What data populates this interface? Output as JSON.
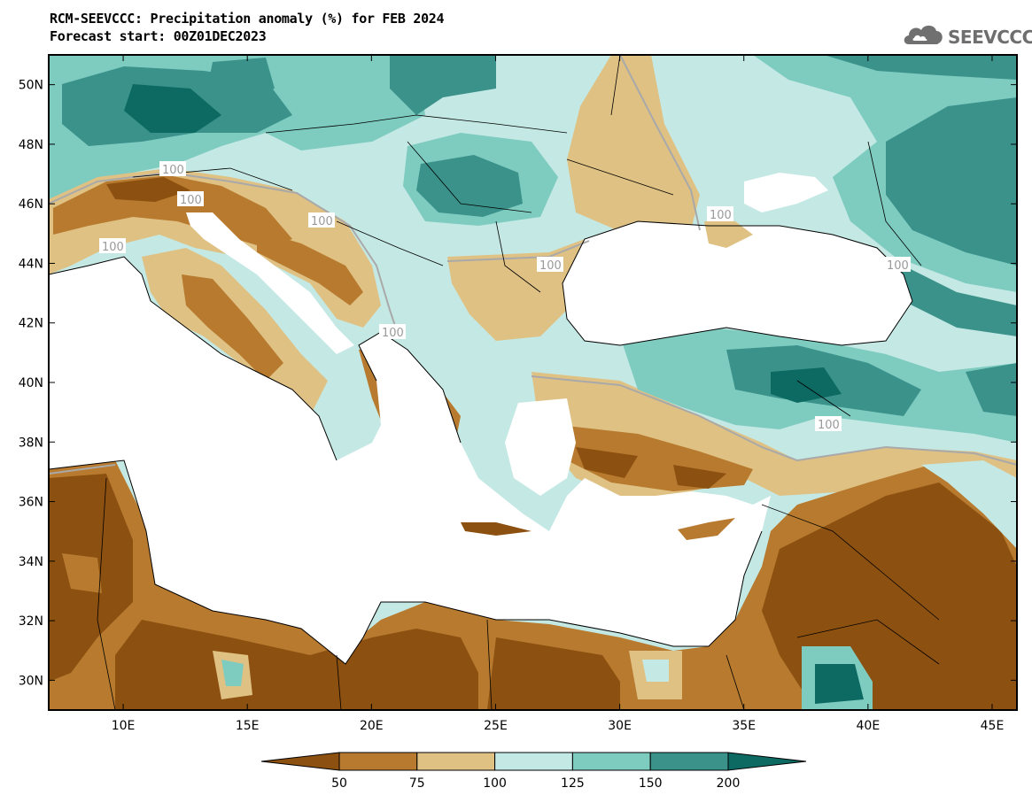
{
  "header": {
    "title": "RCM-SEEVCCC: Precipitation anomaly (%) for FEB 2024",
    "subtitle": "Forecast start: 00Z01DEC2023"
  },
  "logo": {
    "text": "SEEVCCC",
    "icon": "cloud-icon",
    "color": "#707070"
  },
  "map": {
    "lon_range": [
      7,
      46
    ],
    "lat_range": [
      29,
      51
    ],
    "lon_ticks": [
      "10E",
      "15E",
      "20E",
      "25E",
      "30E",
      "35E",
      "40E",
      "45E"
    ],
    "lat_ticks": [
      "30N",
      "32N",
      "34N",
      "36N",
      "38N",
      "40N",
      "42N",
      "44N",
      "46N",
      "48N",
      "50N"
    ],
    "contour_labels": [
      "100",
      "100",
      "100",
      "100",
      "100",
      "100",
      "100",
      "100",
      "100"
    ]
  },
  "colorbar": {
    "ticks": [
      "50",
      "75",
      "100",
      "125",
      "150",
      "200"
    ],
    "colors": [
      "#8c5010",
      "#b77a2e",
      "#dfc184",
      "#c4e8e3",
      "#7ecbc0",
      "#3a928b",
      "#0c6a62"
    ]
  }
}
